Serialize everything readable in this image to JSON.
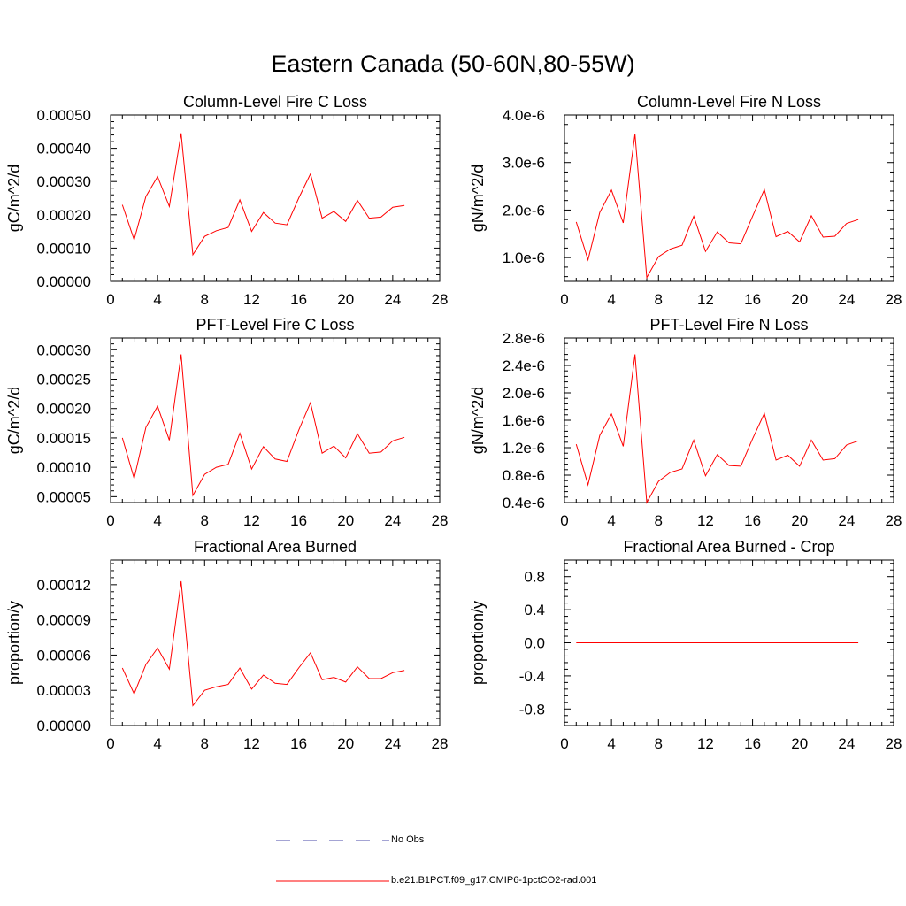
{
  "figure": {
    "title": "Eastern Canada (50-60N,80-55W)"
  },
  "legend": {
    "items": [
      {
        "label": "No Obs",
        "color": "#4a4aa8",
        "dash": true
      },
      {
        "label": "b.e21.B1PCT.f09_g17.CMIP6-1pctCO2-rad.001",
        "color": "#ff0000",
        "dash": false
      }
    ]
  },
  "colors": {
    "series": "#ff0000",
    "axis": "#000000"
  },
  "chart_data": [
    {
      "type": "line",
      "title": "Column-Level Fire C Loss",
      "ylabel": "gC/m^2/d",
      "xlim": [
        0,
        28
      ],
      "ylim": [
        0,
        0.0005
      ],
      "xticks": [
        0,
        4,
        8,
        12,
        16,
        20,
        24,
        28
      ],
      "xtick_labels": [
        "0",
        "4",
        "8",
        "12",
        "16",
        "20",
        "24",
        "28"
      ],
      "yticks": [
        0,
        0.0001,
        0.0002,
        0.0003,
        0.0004,
        0.0005
      ],
      "ytick_labels": [
        "0.00000",
        "0.00010",
        "0.00020",
        "0.00030",
        "0.00040",
        "0.00050"
      ],
      "x": [
        1,
        2,
        3,
        4,
        5,
        6,
        7,
        8,
        9,
        10,
        11,
        12,
        13,
        14,
        15,
        16,
        17,
        18,
        19,
        20,
        21,
        22,
        23,
        24,
        25
      ],
      "series": [
        {
          "values": [
            0.00023,
            0.000125,
            0.000255,
            0.000315,
            0.000225,
            0.000445,
            8e-05,
            0.000135,
            0.000152,
            0.000162,
            0.000245,
            0.00015,
            0.000207,
            0.000175,
            0.00017,
            0.00025,
            0.000323,
            0.00019,
            0.00021,
            0.00018,
            0.000243,
            0.00019,
            0.000193,
            0.000223,
            0.000228
          ]
        }
      ]
    },
    {
      "type": "line",
      "title": "Column-Level Fire N Loss",
      "ylabel": "gN/m^2/d",
      "xlim": [
        0,
        28
      ],
      "ylim": [
        5e-07,
        4e-06
      ],
      "xticks": [
        0,
        4,
        8,
        12,
        16,
        20,
        24,
        28
      ],
      "xtick_labels": [
        "0",
        "4",
        "8",
        "12",
        "16",
        "20",
        "24",
        "28"
      ],
      "yticks": [
        1e-06,
        2e-06,
        3e-06,
        4e-06
      ],
      "ytick_labels": [
        "1.0e-6",
        "2.0e-6",
        "3.0e-6",
        "4.0e-6"
      ],
      "x": [
        1,
        2,
        3,
        4,
        5,
        6,
        7,
        8,
        9,
        10,
        11,
        12,
        13,
        14,
        15,
        16,
        17,
        18,
        19,
        20,
        21,
        22,
        23,
        24,
        25
      ],
      "series": [
        {
          "values": [
            1.75e-06,
            9.5e-07,
            1.95e-06,
            2.42e-06,
            1.73e-06,
            3.6e-06,
            5.8e-07,
            1.02e-06,
            1.18e-06,
            1.26e-06,
            1.87e-06,
            1.13e-06,
            1.54e-06,
            1.31e-06,
            1.29e-06,
            1.87e-06,
            2.43e-06,
            1.44e-06,
            1.55e-06,
            1.33e-06,
            1.88e-06,
            1.43e-06,
            1.45e-06,
            1.72e-06,
            1.8e-06
          ]
        }
      ]
    },
    {
      "type": "line",
      "title": "PFT-Level Fire C Loss",
      "ylabel": "gC/m^2/d",
      "xlim": [
        0,
        28
      ],
      "ylim": [
        4e-05,
        0.00032
      ],
      "xticks": [
        0,
        4,
        8,
        12,
        16,
        20,
        24,
        28
      ],
      "xtick_labels": [
        "0",
        "4",
        "8",
        "12",
        "16",
        "20",
        "24",
        "28"
      ],
      "yticks": [
        5e-05,
        0.0001,
        0.00015,
        0.0002,
        0.00025,
        0.0003
      ],
      "ytick_labels": [
        "0.00005",
        "0.00010",
        "0.00015",
        "0.00020",
        "0.00025",
        "0.00030"
      ],
      "x": [
        1,
        2,
        3,
        4,
        5,
        6,
        7,
        8,
        9,
        10,
        11,
        12,
        13,
        14,
        15,
        16,
        17,
        18,
        19,
        20,
        21,
        22,
        23,
        24,
        25
      ],
      "series": [
        {
          "values": [
            0.00015,
            8.1e-05,
            0.000168,
            0.000204,
            0.000146,
            0.000292,
            5.2e-05,
            8.8e-05,
            0.0001,
            0.000105,
            0.000158,
            9.7e-05,
            0.000135,
            0.000114,
            0.00011,
            0.000163,
            0.00021,
            0.000124,
            0.000136,
            0.000116,
            0.000157,
            0.000124,
            0.000126,
            0.000145,
            0.000151
          ]
        }
      ]
    },
    {
      "type": "line",
      "title": "PFT-Level Fire N Loss",
      "ylabel": "gN/m^2/d",
      "xlim": [
        0,
        28
      ],
      "ylim": [
        4e-07,
        2.8e-06
      ],
      "xticks": [
        0,
        4,
        8,
        12,
        16,
        20,
        24,
        28
      ],
      "xtick_labels": [
        "0",
        "4",
        "8",
        "12",
        "16",
        "20",
        "24",
        "28"
      ],
      "yticks": [
        4e-07,
        8e-07,
        1.2e-06,
        1.6e-06,
        2e-06,
        2.4e-06,
        2.8e-06
      ],
      "ytick_labels": [
        "0.4e-6",
        "0.8e-6",
        "1.2e-6",
        "1.6e-6",
        "2.0e-6",
        "2.4e-6",
        "2.8e-6"
      ],
      "x": [
        1,
        2,
        3,
        4,
        5,
        6,
        7,
        8,
        9,
        10,
        11,
        12,
        13,
        14,
        15,
        16,
        17,
        18,
        19,
        20,
        21,
        22,
        23,
        24,
        25
      ],
      "series": [
        {
          "values": [
            1.25e-06,
            6.6e-07,
            1.38e-06,
            1.69e-06,
            1.22e-06,
            2.56e-06,
            4e-07,
            7.1e-07,
            8.4e-07,
            8.9e-07,
            1.31e-06,
            7.9e-07,
            1.1e-06,
            9.4e-07,
            9.3e-07,
            1.33e-06,
            1.7e-06,
            1.02e-06,
            1.09e-06,
            9.3e-07,
            1.31e-06,
            1.02e-06,
            1.04e-06,
            1.24e-06,
            1.3e-06
          ]
        }
      ]
    },
    {
      "type": "line",
      "title": "Fractional Area Burned",
      "ylabel": "proportion/y",
      "xlim": [
        0,
        28
      ],
      "ylim": [
        0,
        0.000141
      ],
      "xticks": [
        0,
        4,
        8,
        12,
        16,
        20,
        24,
        28
      ],
      "xtick_labels": [
        "0",
        "4",
        "8",
        "12",
        "16",
        "20",
        "24",
        "28"
      ],
      "yticks": [
        0,
        3e-05,
        6e-05,
        9e-05,
        0.00012
      ],
      "ytick_labels": [
        "0.00000",
        "0.00003",
        "0.00006",
        "0.00009",
        "0.00012"
      ],
      "x": [
        1,
        2,
        3,
        4,
        5,
        6,
        7,
        8,
        9,
        10,
        11,
        12,
        13,
        14,
        15,
        16,
        17,
        18,
        19,
        20,
        21,
        22,
        23,
        24,
        25
      ],
      "series": [
        {
          "values": [
            4.9e-05,
            2.7e-05,
            5.2e-05,
            6.6e-05,
            4.8e-05,
            0.000123,
            1.7e-05,
            3e-05,
            3.3e-05,
            3.5e-05,
            4.9e-05,
            3.1e-05,
            4.3e-05,
            3.6e-05,
            3.5e-05,
            4.9e-05,
            6.2e-05,
            3.9e-05,
            4.1e-05,
            3.7e-05,
            5e-05,
            4e-05,
            4e-05,
            4.5e-05,
            4.7e-05
          ]
        }
      ]
    },
    {
      "type": "line",
      "title": "Fractional Area Burned - Crop",
      "ylabel": "proportion/y",
      "xlim": [
        0,
        28
      ],
      "ylim": [
        -1,
        1
      ],
      "xticks": [
        0,
        4,
        8,
        12,
        16,
        20,
        24,
        28
      ],
      "xtick_labels": [
        "0",
        "4",
        "8",
        "12",
        "16",
        "20",
        "24",
        "28"
      ],
      "yticks": [
        -0.8,
        -0.4,
        0,
        0.4,
        0.8
      ],
      "ytick_labels": [
        "-0.8",
        "-0.4",
        "0.0",
        "0.4",
        "0.8"
      ],
      "x": [
        1,
        2,
        3,
        4,
        5,
        6,
        7,
        8,
        9,
        10,
        11,
        12,
        13,
        14,
        15,
        16,
        17,
        18,
        19,
        20,
        21,
        22,
        23,
        24,
        25
      ],
      "series": [
        {
          "values": [
            0,
            0,
            0,
            0,
            0,
            0,
            0,
            0,
            0,
            0,
            0,
            0,
            0,
            0,
            0,
            0,
            0,
            0,
            0,
            0,
            0,
            0,
            0,
            0,
            0
          ]
        }
      ]
    }
  ]
}
